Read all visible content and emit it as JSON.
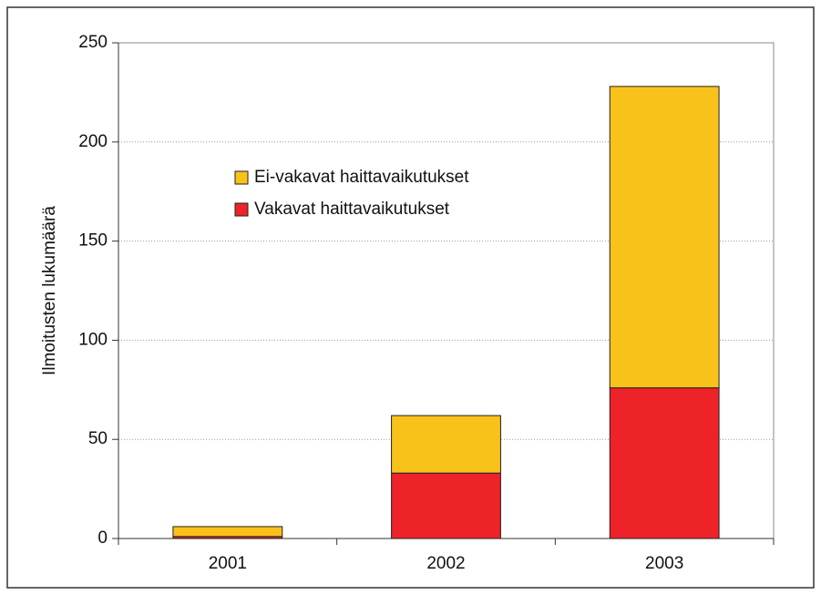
{
  "chart_data": {
    "type": "stacked_bar",
    "y_label": "Ilmoitusten lukumäärä",
    "categories": [
      "2001",
      "2002",
      "2003"
    ],
    "series": [
      {
        "name": "Vakavat haittavaikutukset",
        "color": "#ee2229",
        "values": [
          1,
          33,
          76
        ]
      },
      {
        "name": "Ei-vakavat haittavaikutukset",
        "color": "#f9c21a",
        "values": [
          5,
          29,
          152
        ]
      }
    ],
    "ylim": [
      0,
      250
    ],
    "yticks": [
      0,
      50,
      100,
      150,
      200,
      250
    ],
    "grid": true
  }
}
